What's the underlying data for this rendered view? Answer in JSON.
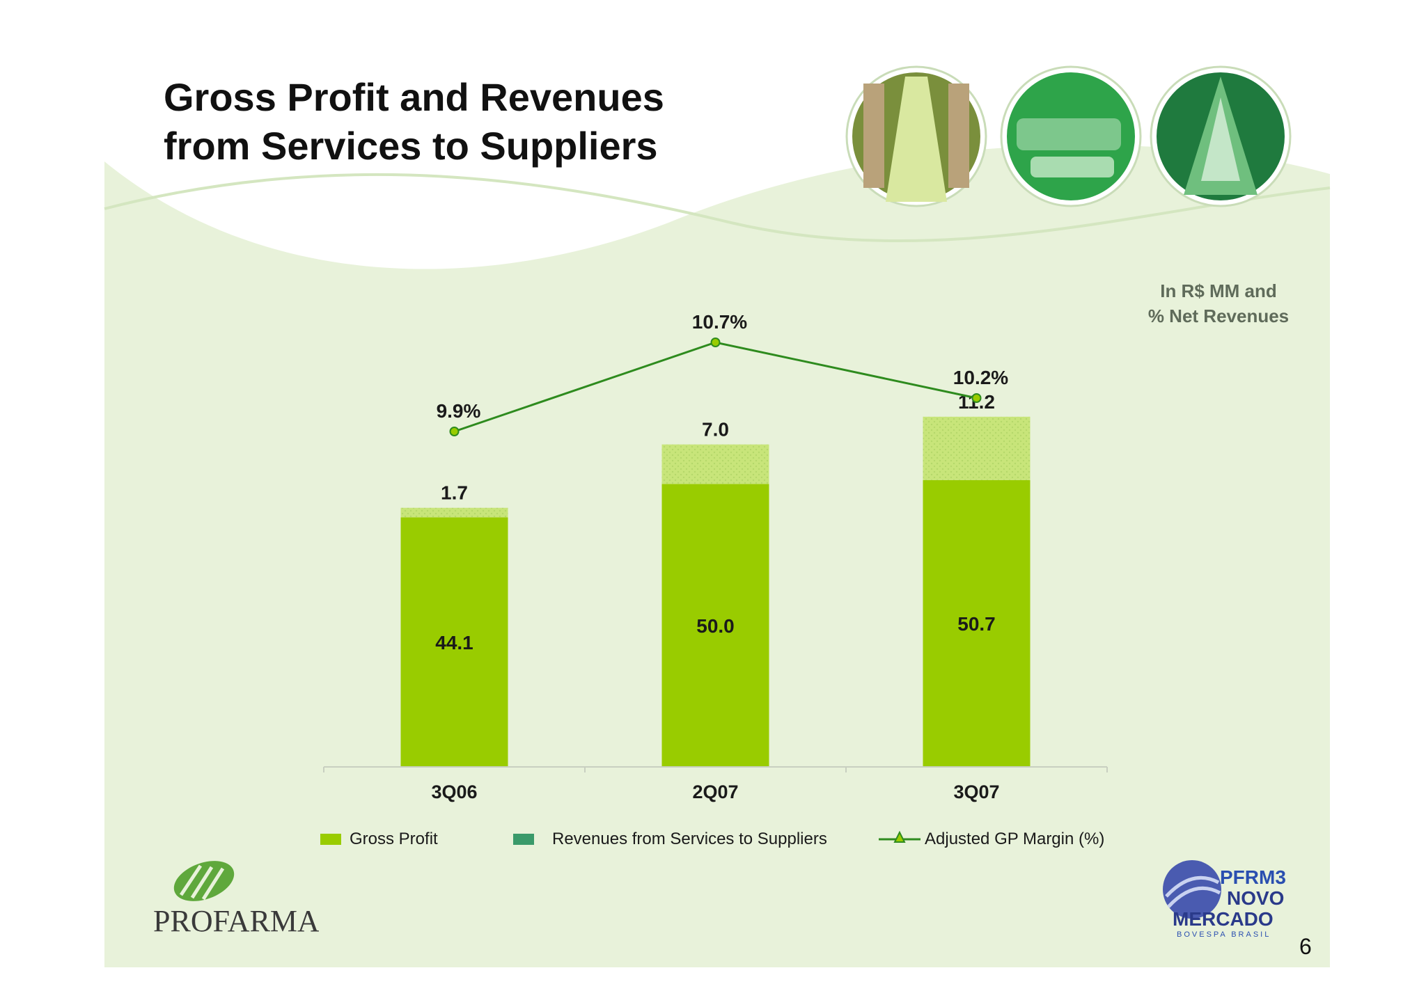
{
  "slide": {
    "title_line1": "Gross Profit and Revenues",
    "title_line2": "from Services to Suppliers",
    "unit_line1": "In R$ MM and",
    "unit_line2": "% Net Revenues",
    "page_number": "6"
  },
  "logos": {
    "left_text": "PROFARMA",
    "right_line1": "PFRM3",
    "right_line2": "NOVO",
    "right_line3": "MERCADO",
    "right_line4": "BOVESPA  BRASIL"
  },
  "colors": {
    "gross_profit": "#99cc00",
    "revenues_services": "#c8e57a",
    "legend_revenues": "#3a9a6a",
    "margin_line": "#2e8b1e",
    "background": "#e8f2da"
  },
  "chart_data": {
    "type": "bar",
    "stacked": true,
    "categories": [
      "3Q06",
      "2Q07",
      "3Q07"
    ],
    "series": [
      {
        "name": "Gross Profit",
        "values": [
          44.1,
          50.0,
          50.7
        ],
        "labels": [
          "44.1",
          "50.0",
          "50.7"
        ]
      },
      {
        "name": "Revenues from Services to Suppliers",
        "values": [
          1.7,
          7.0,
          11.2
        ],
        "labels": [
          "1.7",
          "7.0",
          "11.2"
        ]
      }
    ],
    "line_series": {
      "name": "Adjusted GP Margin (%)",
      "values": [
        9.9,
        10.7,
        10.2
      ],
      "labels": [
        "9.9%",
        "10.7%",
        "10.2%"
      ]
    },
    "ylim": [
      0,
      62
    ],
    "legend": [
      "Gross Profit",
      "Revenues from Services to Suppliers",
      "Adjusted GP Margin (%)"
    ],
    "legend_position": "bottom"
  }
}
